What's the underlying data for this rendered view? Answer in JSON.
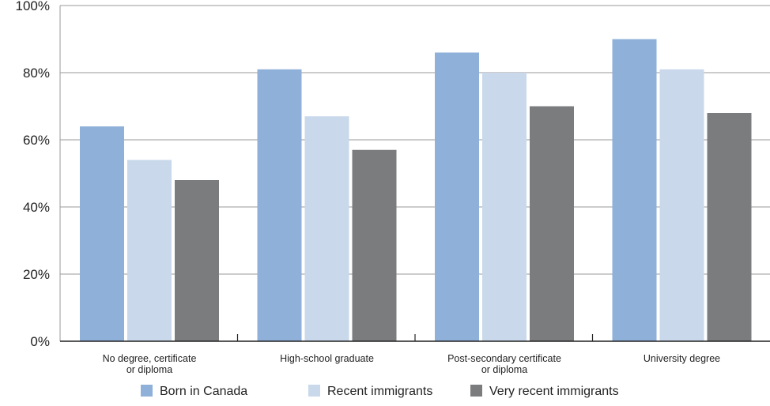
{
  "chart_data": {
    "type": "bar",
    "title": "",
    "xlabel": "",
    "ylabel": "",
    "ylim": [
      0,
      100
    ],
    "y_ticks": [
      "0%",
      "20%",
      "40%",
      "60%",
      "80%",
      "100%"
    ],
    "y_tick_values": [
      0,
      20,
      40,
      60,
      80,
      100
    ],
    "grid": true,
    "legend_position": "bottom",
    "categories": [
      [
        "No degree, certificate",
        "or diploma"
      ],
      [
        "High-school graduate"
      ],
      [
        "Post-secondary certificate",
        "or diploma"
      ],
      [
        "University degree"
      ]
    ],
    "series": [
      {
        "name": "Born in Canada",
        "color": "#8fb0d8",
        "values": [
          64,
          81,
          86,
          90
        ]
      },
      {
        "name": "Recent immigrants",
        "color": "#c9d8eb",
        "values": [
          54,
          67,
          80,
          81
        ]
      },
      {
        "name": "Very recent immigrants",
        "color": "#7b7c7e",
        "values": [
          48,
          57,
          70,
          68
        ]
      }
    ]
  }
}
